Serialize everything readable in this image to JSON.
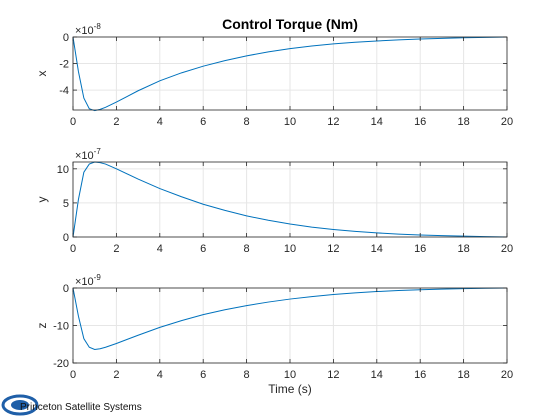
{
  "figure": {
    "title": "Control Torque (Nm)",
    "logo_text": "Princeton Satellite Systems",
    "colors": {
      "line": "#0072BD",
      "axis": "#262626",
      "grid": "#e6e6e6",
      "logo": "#1f5fa8"
    }
  },
  "chart_data": [
    {
      "type": "line",
      "ylabel": "x",
      "exponent": "-8",
      "xlim": [
        0,
        20
      ],
      "ylim": [
        -5.5,
        0
      ],
      "xticks": [
        0,
        2,
        4,
        6,
        8,
        10,
        12,
        14,
        16,
        18,
        20
      ],
      "yticks": [
        -4,
        -2,
        0
      ],
      "grid": true,
      "series": [
        {
          "x": [
            0,
            0.25,
            0.5,
            0.75,
            1.0,
            1.25,
            1.5,
            2,
            3,
            4,
            5,
            6,
            7,
            8,
            9,
            10,
            11,
            12,
            13,
            14,
            15,
            16,
            17,
            18,
            19,
            20
          ],
          "y": [
            0,
            -2.6,
            -4.6,
            -5.4,
            -5.55,
            -5.45,
            -5.3,
            -4.9,
            -4.05,
            -3.3,
            -2.7,
            -2.2,
            -1.78,
            -1.42,
            -1.12,
            -0.88,
            -0.68,
            -0.52,
            -0.4,
            -0.3,
            -0.22,
            -0.15,
            -0.1,
            -0.06,
            -0.03,
            0
          ]
        }
      ]
    },
    {
      "type": "line",
      "ylabel": "y",
      "exponent": "-7",
      "xlim": [
        0,
        20
      ],
      "ylim": [
        0,
        11
      ],
      "xticks": [
        0,
        2,
        4,
        6,
        8,
        10,
        12,
        14,
        16,
        18,
        20
      ],
      "yticks": [
        0,
        5,
        10
      ],
      "grid": true,
      "series": [
        {
          "x": [
            0,
            0.25,
            0.5,
            0.75,
            1.0,
            1.25,
            1.5,
            2,
            3,
            4,
            5,
            6,
            7,
            8,
            9,
            10,
            11,
            12,
            13,
            14,
            15,
            16,
            17,
            18,
            19,
            20
          ],
          "y": [
            0,
            5.5,
            9.5,
            10.7,
            11.0,
            10.9,
            10.7,
            10.0,
            8.5,
            7.1,
            5.9,
            4.8,
            3.9,
            3.1,
            2.45,
            1.9,
            1.45,
            1.1,
            0.82,
            0.6,
            0.43,
            0.3,
            0.2,
            0.12,
            0.06,
            0
          ]
        }
      ]
    },
    {
      "type": "line",
      "ylabel": "z",
      "exponent": "-9",
      "xlim": [
        0,
        20
      ],
      "ylim": [
        -20,
        0
      ],
      "xticks": [
        0,
        2,
        4,
        6,
        8,
        10,
        12,
        14,
        16,
        18,
        20
      ],
      "yticks": [
        -20,
        -10,
        0
      ],
      "xlabel": "Time (s)",
      "grid": true,
      "series": [
        {
          "x": [
            0,
            0.25,
            0.5,
            0.75,
            1.0,
            1.25,
            1.5,
            2,
            3,
            4,
            5,
            6,
            7,
            8,
            9,
            10,
            11,
            12,
            13,
            14,
            15,
            16,
            17,
            18,
            19,
            20
          ],
          "y": [
            0,
            -7.5,
            -13.5,
            -15.8,
            -16.4,
            -16.2,
            -15.8,
            -14.8,
            -12.6,
            -10.5,
            -8.7,
            -7.1,
            -5.8,
            -4.7,
            -3.75,
            -2.95,
            -2.3,
            -1.75,
            -1.3,
            -0.95,
            -0.68,
            -0.47,
            -0.3,
            -0.18,
            -0.08,
            0
          ]
        }
      ]
    }
  ]
}
